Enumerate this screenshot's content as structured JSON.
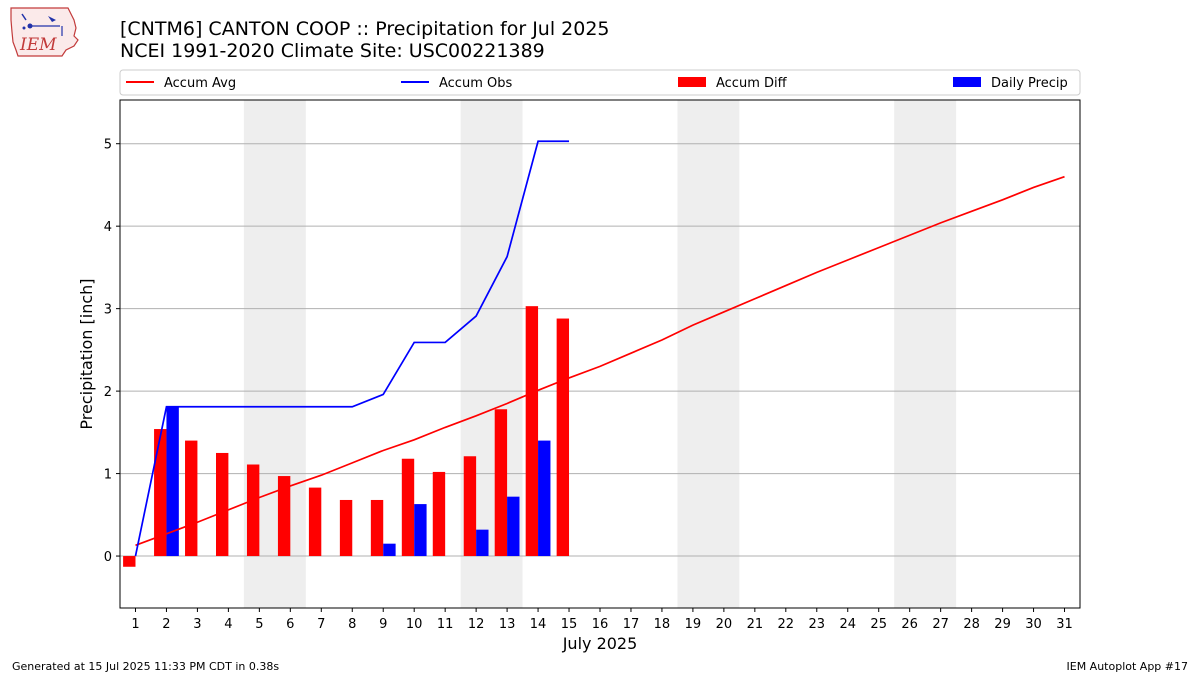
{
  "header": {
    "title_line1": "[CNTM6] CANTON  COOP :: Precipitation for Jul 2025",
    "title_line2": "NCEI 1991-2020 Climate Site: USC00221389",
    "logo_text": "IEM"
  },
  "footer": {
    "left": "Generated at 15 Jul 2025 11:33 PM CDT in 0.38s",
    "right": "IEM Autoplot App #17"
  },
  "chart_data": {
    "type": "bar",
    "title": "[CNTM6] CANTON  COOP :: Precipitation for Jul 2025",
    "subtitle": "NCEI 1991-2020 Climate Site: USC00221389",
    "xlabel": "July 2025",
    "ylabel": "Precipitation [inch]",
    "xlim": [
      0.5,
      31.5
    ],
    "ylim": [
      -0.63,
      5.53
    ],
    "x_ticks": [
      1,
      2,
      3,
      4,
      5,
      6,
      7,
      8,
      9,
      10,
      11,
      12,
      13,
      14,
      15,
      16,
      17,
      18,
      19,
      20,
      21,
      22,
      23,
      24,
      25,
      26,
      27,
      28,
      29,
      30,
      31
    ],
    "y_ticks": [
      0,
      1,
      2,
      3,
      4,
      5
    ],
    "grid": "horizontal",
    "legend_placement": "top",
    "weekend_shading": [
      [
        4.5,
        6.5
      ],
      [
        11.5,
        13.5
      ],
      [
        18.5,
        20.5
      ],
      [
        25.5,
        27.5
      ]
    ],
    "colors": {
      "avg": "#ff0000",
      "obs": "#0000ff",
      "diff": "#ff0000",
      "daily": "#0000ff",
      "weekend": "#eeeeee"
    },
    "legend": [
      "Accum Avg",
      "Accum Obs",
      "Accum Diff",
      "Daily Precip"
    ],
    "series": [
      {
        "name": "Accum Avg",
        "kind": "line",
        "x": [
          1,
          2,
          3,
          4,
          5,
          6,
          7,
          8,
          9,
          10,
          11,
          12,
          13,
          14,
          15,
          16,
          17,
          18,
          19,
          20,
          21,
          22,
          23,
          24,
          25,
          26,
          27,
          28,
          29,
          30,
          31
        ],
        "values": [
          0.13,
          0.27,
          0.41,
          0.56,
          0.71,
          0.85,
          0.98,
          1.13,
          1.28,
          1.41,
          1.56,
          1.7,
          1.85,
          2.01,
          2.16,
          2.3,
          2.46,
          2.62,
          2.8,
          2.96,
          3.12,
          3.28,
          3.44,
          3.59,
          3.74,
          3.89,
          4.04,
          4.18,
          4.32,
          4.47,
          4.6
        ]
      },
      {
        "name": "Accum Obs",
        "kind": "line",
        "x": [
          1,
          2,
          3,
          4,
          5,
          6,
          7,
          8,
          9,
          10,
          11,
          12,
          13,
          14,
          15
        ],
        "values": [
          0.0,
          1.81,
          1.81,
          1.81,
          1.81,
          1.81,
          1.81,
          1.81,
          1.96,
          2.59,
          2.59,
          2.91,
          3.63,
          5.03,
          5.03
        ]
      },
      {
        "name": "Accum Diff",
        "kind": "bar",
        "x": [
          1,
          2,
          3,
          4,
          5,
          6,
          7,
          8,
          9,
          10,
          11,
          12,
          13,
          14,
          15
        ],
        "values": [
          -0.13,
          1.54,
          1.4,
          1.25,
          1.11,
          0.97,
          0.83,
          0.68,
          0.68,
          1.18,
          1.02,
          1.21,
          1.78,
          3.03,
          2.88
        ]
      },
      {
        "name": "Daily Precip",
        "kind": "bar",
        "x": [
          2,
          9,
          10,
          12,
          13,
          14
        ],
        "values": [
          1.81,
          0.15,
          0.63,
          0.32,
          0.72,
          1.4
        ]
      }
    ]
  }
}
